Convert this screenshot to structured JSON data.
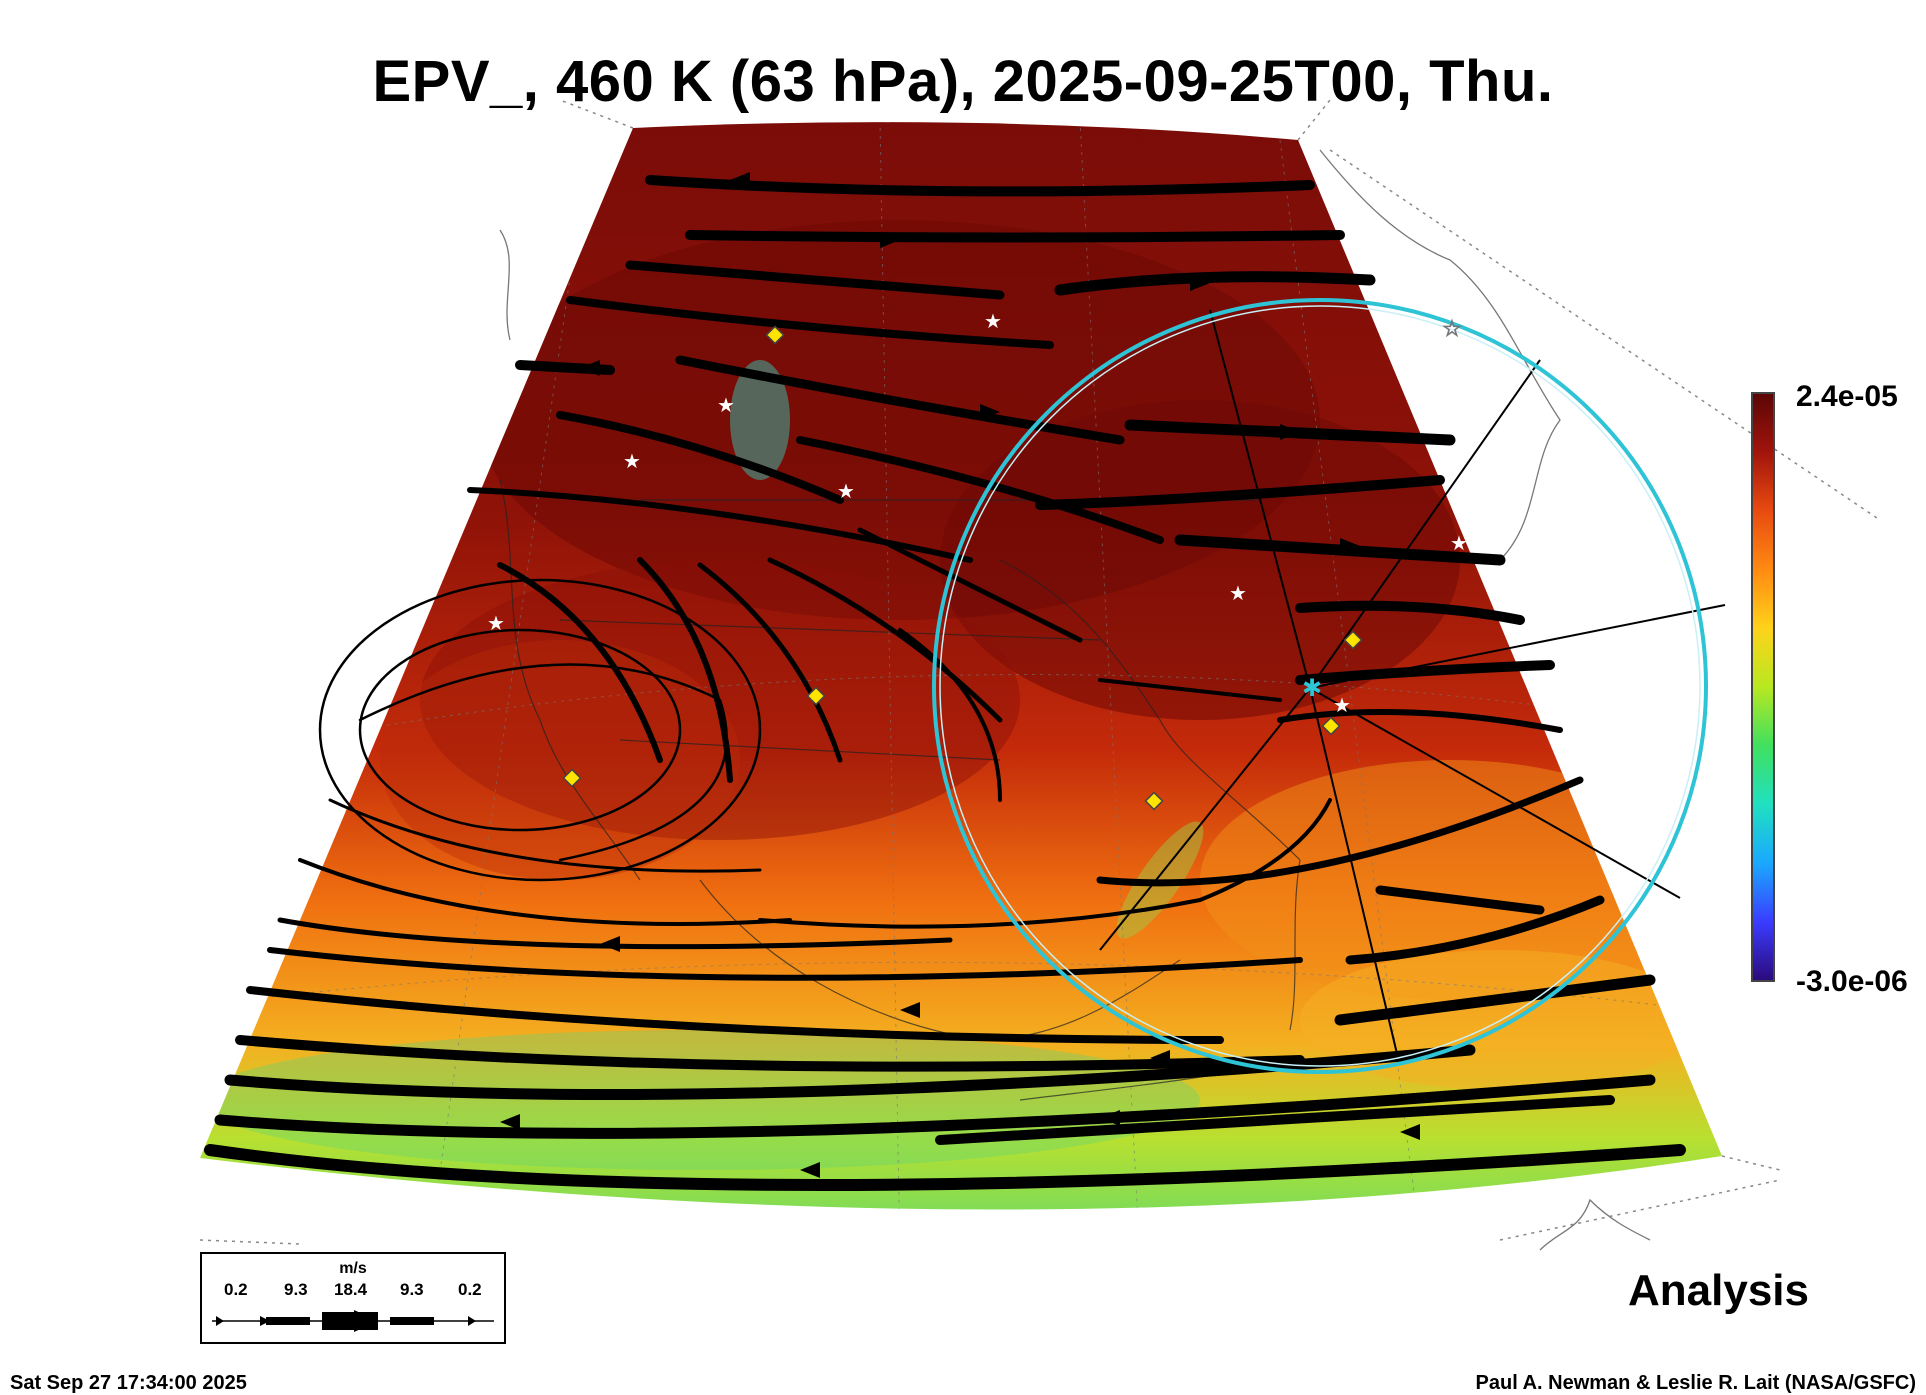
{
  "title": "EPV_, 460 K (63 hPa), 2025-09-25T00, Thu.",
  "colorbar": {
    "max_label": "2.4e-05",
    "min_label": "-3.0e-06",
    "colors": [
      "#2b0a7a",
      "#3a3cff",
      "#1aa8ff",
      "#20e0c0",
      "#40e060",
      "#b8e820",
      "#ffd21a",
      "#ff8a12",
      "#e84a10",
      "#a0140c",
      "#5a0606"
    ]
  },
  "wind_legend": {
    "unit": "m/s",
    "values": [
      "0.2",
      "9.3",
      "18.4",
      "9.3",
      "0.2"
    ]
  },
  "label_analysis": "Analysis",
  "timestamp": "Sat Sep 27 17:34:00 2025",
  "credit": "Paul A. Newman & Leslie R. Lait (NASA/GSFC)",
  "colors": {
    "ring": "#2ec4d6",
    "marker_diamond": "#ffe400",
    "marker_star": "#ffffff"
  }
}
